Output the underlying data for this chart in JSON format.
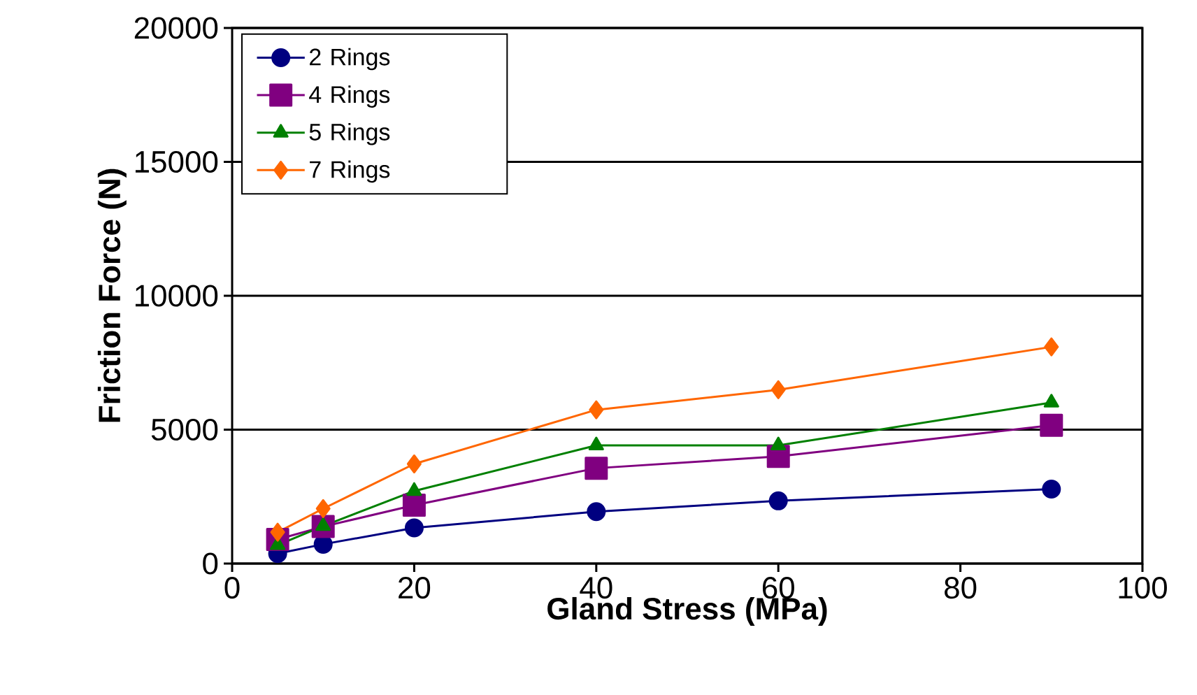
{
  "chart_data": {
    "type": "line",
    "xlabel": "Gland Stress (MPa)",
    "ylabel": "Friction Force (N)",
    "xlim": [
      0,
      100
    ],
    "xticks": [
      0,
      20,
      40,
      60,
      80,
      100
    ],
    "ylim": [
      0,
      20000
    ],
    "yticks": [
      0,
      5000,
      10000,
      15000,
      20000
    ],
    "grid": "y",
    "legend": "top left",
    "line_style": "solid",
    "series": [
      {
        "name": "2 Rings",
        "color": "#000080",
        "marker": "circle",
        "x": [
          5,
          10,
          20,
          40,
          60,
          90
        ],
        "values": [
          370,
          720,
          1330,
          1940,
          2340,
          2780
        ]
      },
      {
        "name": "4 Rings",
        "color": "#800080",
        "marker": "square",
        "x": [
          5,
          10,
          20,
          40,
          60,
          90
        ],
        "values": [
          900,
          1380,
          2180,
          3560,
          4000,
          5160
        ]
      },
      {
        "name": "5 Rings",
        "color": "#008000",
        "marker": "triangle",
        "x": [
          5,
          10,
          20,
          40,
          60,
          90
        ],
        "values": [
          690,
          1400,
          2710,
          4410,
          4410,
          6010
        ]
      },
      {
        "name": "7 Rings",
        "color": "#ff6600",
        "marker": "diamond",
        "x": [
          5,
          10,
          20,
          40,
          60,
          90
        ],
        "values": [
          1170,
          2050,
          3720,
          5740,
          6490,
          8090
        ]
      }
    ]
  }
}
